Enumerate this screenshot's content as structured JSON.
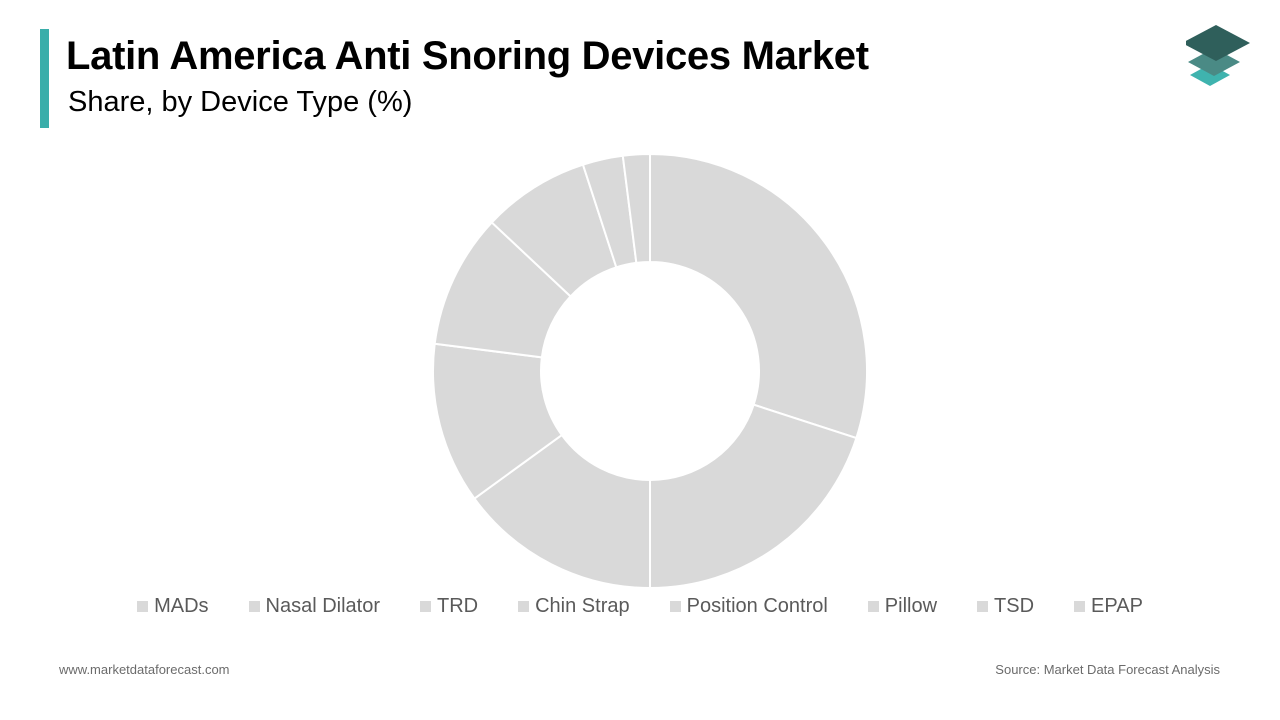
{
  "header": {
    "title": "Latin America Anti Snoring Devices Market",
    "subtitle": "Share, by Device Type (%)",
    "accent_color": "#3aaeaa"
  },
  "logo": {
    "icon": "stacked-layers-logo",
    "colors": [
      "#2f5f5b",
      "#4a8a85",
      "#3fb3ae"
    ]
  },
  "chart_data": {
    "type": "pie",
    "variant": "donut",
    "categories": [
      "MADs",
      "Nasal Dilator",
      "TRD",
      "Chin Strap",
      "Position Control",
      "Pillow",
      "TSD",
      "EPAP"
    ],
    "values": [
      30,
      20,
      15,
      12,
      10,
      8,
      3,
      2
    ],
    "unit": "%",
    "slice_color": "#d9d9d9",
    "separator_color": "#ffffff",
    "legend_position": "bottom"
  },
  "footer": {
    "website": "www.marketdataforecast.com",
    "source": "Source: Market Data Forecast Analysis"
  }
}
